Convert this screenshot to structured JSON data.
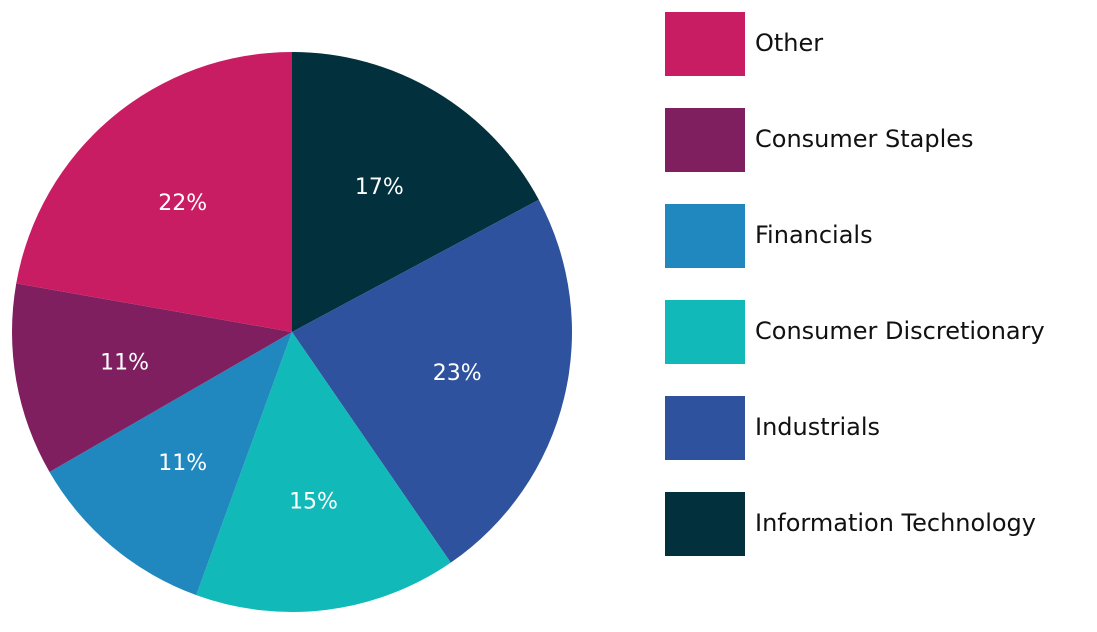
{
  "chart_data": {
    "type": "pie",
    "title": "",
    "start": "top",
    "direction": "clockwise",
    "slices": [
      {
        "label": "Information Technology",
        "value": 17,
        "display": "17%",
        "color": "#02313D"
      },
      {
        "label": "Industrials",
        "value": 23,
        "display": "23%",
        "color": "#2F529E"
      },
      {
        "label": "Consumer Discretionary",
        "value": 15,
        "display": "15%",
        "color": "#12B9B9"
      },
      {
        "label": "Financials",
        "value": 11,
        "display": "11%",
        "color": "#2088BE"
      },
      {
        "label": "Consumer Staples",
        "value": 11,
        "display": "11%",
        "color": "#7F1F5F"
      },
      {
        "label": "Other",
        "value": 22,
        "display": "22%",
        "color": "#C91D63"
      }
    ],
    "legend": {
      "placement": "right",
      "entries": [
        "Other",
        "Consumer Staples",
        "Financials",
        "Consumer Discretionary",
        "Industrials",
        "Information Technology"
      ]
    }
  }
}
